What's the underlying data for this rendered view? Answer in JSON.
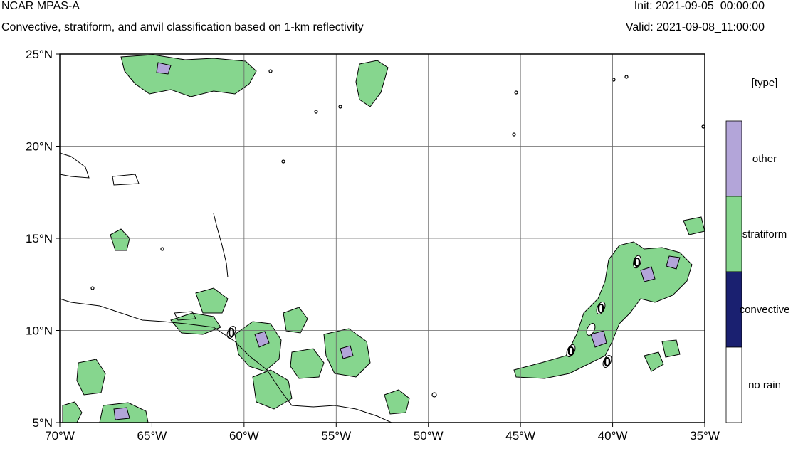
{
  "header": {
    "model": "NCAR MPAS-A",
    "subtitle": "Convective, stratiform, and anvil classification based on 1-km reflectivity",
    "init": "Init: 2021-09-05_00:00:00",
    "valid": "Valid: 2021-09-08_11:00:00"
  },
  "map": {
    "lon_ticks": [
      "70°W",
      "65°W",
      "60°W",
      "55°W",
      "50°W",
      "45°W",
      "40°W",
      "35°W"
    ],
    "lat_ticks": [
      "25°N",
      "20°N",
      "15°N",
      "10°N",
      "5°N"
    ],
    "lon_range": [
      -70,
      -35
    ],
    "lat_range": [
      5,
      25
    ],
    "grid": true,
    "contour_labels": [
      "0",
      "0",
      "0",
      "0",
      "0"
    ]
  },
  "legend": {
    "title": "[type]",
    "categories": [
      {
        "label": "other",
        "color": "#b3a5d9"
      },
      {
        "label": "stratiform",
        "color": "#86d68e"
      },
      {
        "label": "convective",
        "color": "#1a2070"
      },
      {
        "label": "no rain",
        "color": "#ffffff"
      }
    ]
  }
}
